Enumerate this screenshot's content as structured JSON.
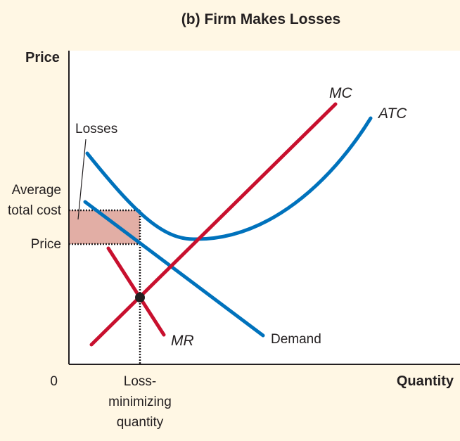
{
  "chart_data": {
    "type": "line",
    "title": "(b) Firm Makes Losses",
    "xlabel": "Quantity",
    "ylabel": "Price",
    "origin_label": "0",
    "x_tick_label": "Loss-\nminimizing\nquantity",
    "y_tick_labels": {
      "average_total_cost": "Average\ntotal cost",
      "price": "Price"
    },
    "area_label": "Losses",
    "curves": [
      {
        "name": "MC",
        "color": "#c8102e"
      },
      {
        "name": "ATC",
        "color": "#0072bc"
      },
      {
        "name": "MR",
        "color": "#c8102e"
      },
      {
        "name": "Demand",
        "color": "#0072bc"
      }
    ],
    "colors": {
      "background": "#fff7e4",
      "plot_background": "#ffffff",
      "loss_area": "#e2aea5",
      "axis": "#231f20"
    }
  }
}
